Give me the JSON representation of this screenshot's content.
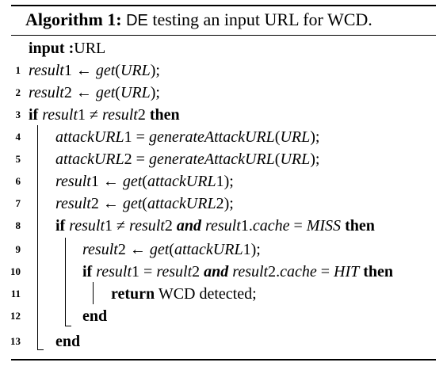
{
  "algorithm": {
    "caption_label": "Algorithm 1:",
    "caption_de": "DE",
    "caption_rest": "testing an input URL for WCD.",
    "input_keyword": "input :",
    "input_value": "URL",
    "lines": [
      {
        "num": "1",
        "text": "result1 ← get(URL);"
      },
      {
        "num": "2",
        "text": "result2 ← get(URL);"
      },
      {
        "num": "3",
        "text": "if result1 ≠ result2 then"
      },
      {
        "num": "4",
        "text": "attackURL1 = generateAttackURL(URL);"
      },
      {
        "num": "5",
        "text": "attackURL2 = generateAttackURL(URL);"
      },
      {
        "num": "6",
        "text": "result1 ← get(attackURL1);"
      },
      {
        "num": "7",
        "text": "result2 ← get(attackURL2);"
      },
      {
        "num": "8",
        "text": "if result1 ≠ result2 and result1.cache = MISS then"
      },
      {
        "num": "9",
        "text": "result2 ← get(attackURL1);"
      },
      {
        "num": "10",
        "text": "if result1 = result2 and result2.cache = HIT then"
      },
      {
        "num": "11",
        "text": "return WCD detected;"
      },
      {
        "num": "12",
        "text": "end"
      },
      {
        "num": "13",
        "text": "end"
      }
    ]
  }
}
